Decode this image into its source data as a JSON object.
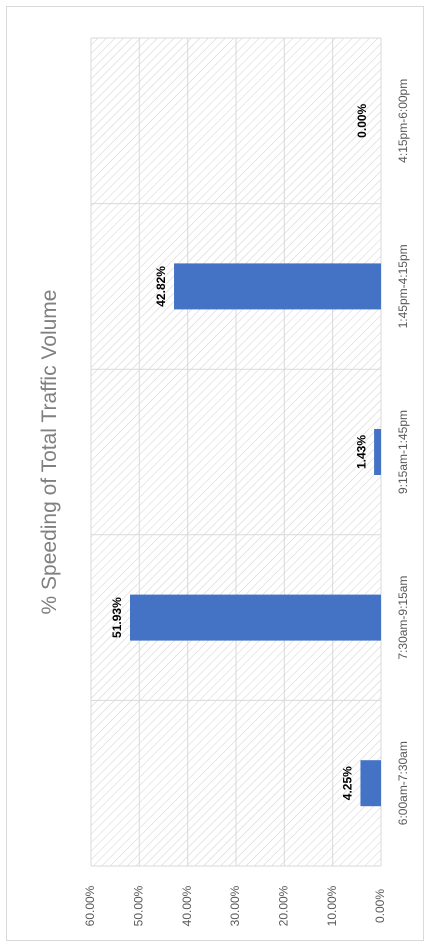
{
  "chart_data": {
    "type": "bar",
    "orientation": "rotated-90",
    "title": "% Speeding of Total Traffic Volume",
    "categories": [
      "6:00am-7:30am",
      "7:30am-9:15am",
      "9:15am-1:45pm",
      "1:45pm-4:15pm",
      "4:15pm-6:00pm"
    ],
    "values": [
      4.25,
      51.93,
      1.43,
      42.82,
      0.0
    ],
    "data_labels": [
      "4.25%",
      "51.93%",
      "1.43%",
      "42.82%",
      "0.00%"
    ],
    "ylim": [
      0,
      60
    ],
    "yticks": [
      0,
      10,
      20,
      30,
      40,
      50,
      60
    ],
    "ytick_labels": [
      "0.00%",
      "10.00%",
      "20.00%",
      "30.00%",
      "40.00%",
      "50.00%",
      "60.00%"
    ],
    "xlabel": "",
    "ylabel": "",
    "grid": true,
    "legend": "none",
    "bar_color": "#4472C4",
    "grid_color": "#d9d9d9",
    "hatch_color": "#d0d0d0",
    "label_color": "#000000",
    "axis_text_color": "#595959",
    "title_color": "#808080"
  }
}
